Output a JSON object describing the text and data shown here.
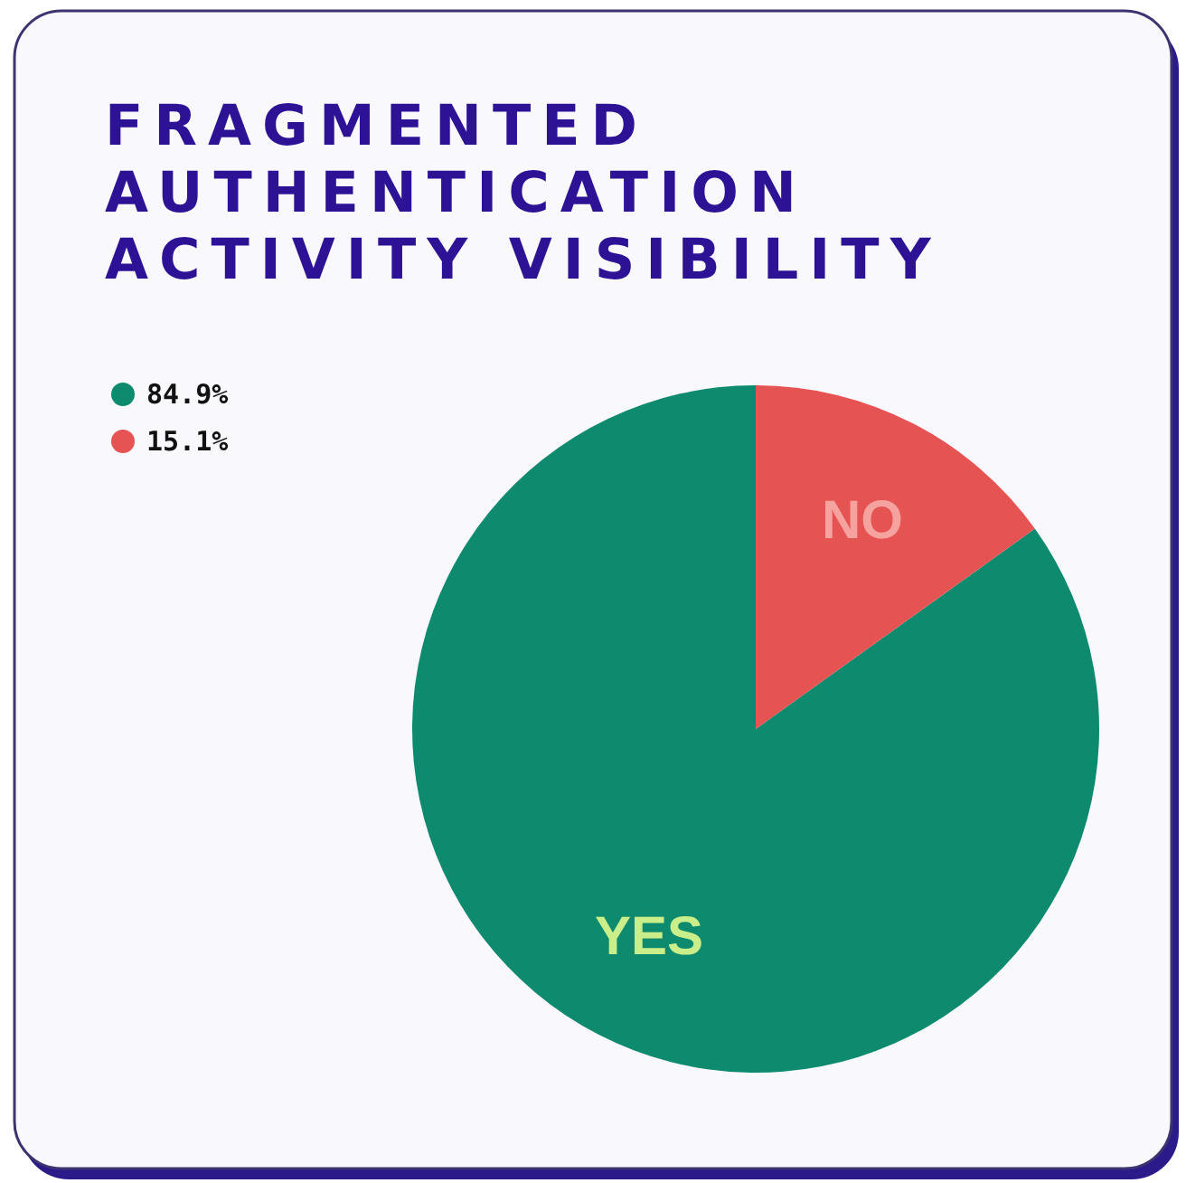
{
  "chart_data": {
    "type": "pie",
    "title": "FRAGMENTED AUTHENTICATION ACTIVITY VISIBILITY",
    "categories": [
      "YES",
      "NO"
    ],
    "values": [
      84.9,
      15.1
    ],
    "colors": [
      "#0e8a6e",
      "#e65353"
    ],
    "annotations": [
      "84.9%",
      "15.1%"
    ]
  }
}
